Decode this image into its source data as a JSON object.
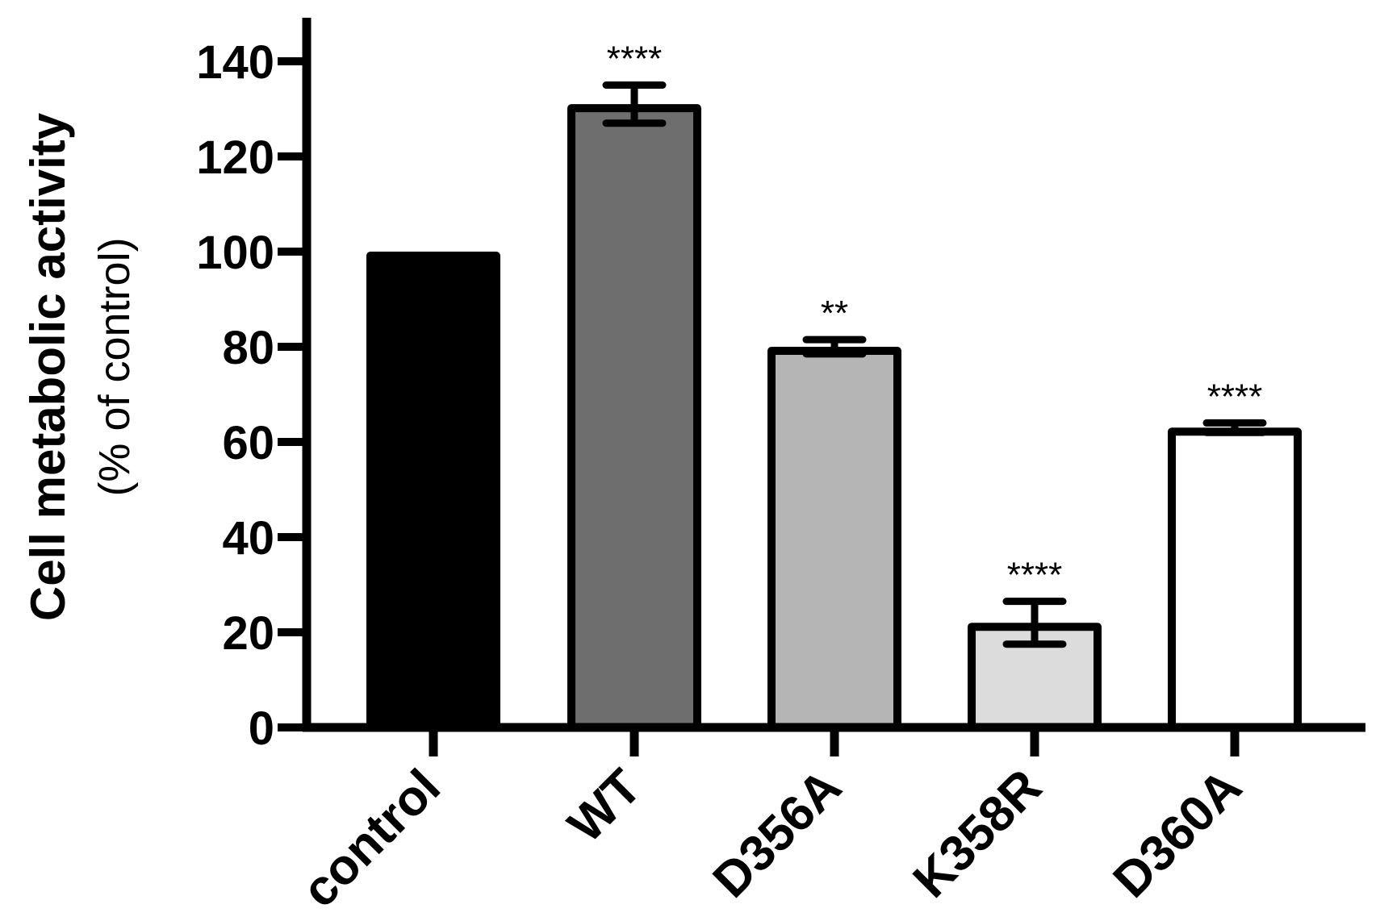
{
  "chart_data": {
    "type": "bar",
    "title": "",
    "xlabel": "",
    "ylabel": "Cell metabolic activity",
    "ylabel_sub": "(% of control)",
    "ylim": [
      0,
      150
    ],
    "yticks": [
      0,
      20,
      40,
      60,
      80,
      100,
      120,
      140
    ],
    "categories": [
      "control",
      "WT",
      "D356A",
      "K358R",
      "D360A"
    ],
    "values": [
      100,
      131,
      80,
      22,
      63
    ],
    "errors": [
      0,
      4,
      1.5,
      4.5,
      1
    ],
    "significance": [
      "",
      "****",
      "**",
      "****",
      "****"
    ],
    "bar_colors": [
      "#000000",
      "#6e6e6e",
      "#b5b5b5",
      "#dcdcdc",
      "#ffffff"
    ],
    "grid": false,
    "legend": "none"
  }
}
